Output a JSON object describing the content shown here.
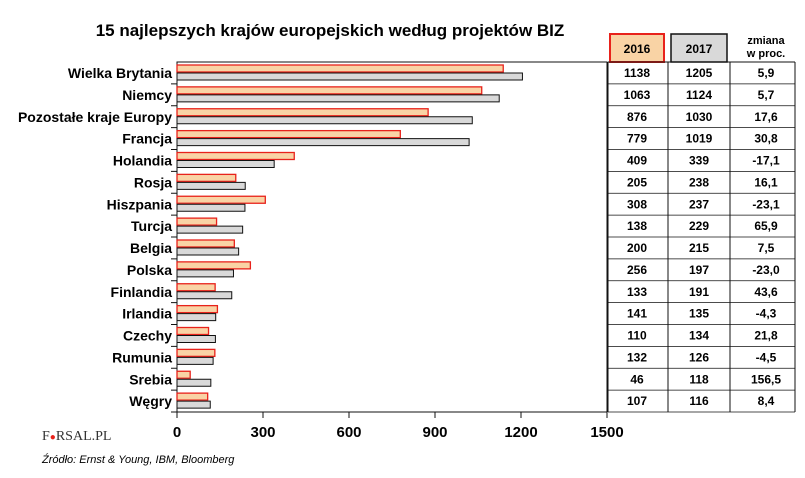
{
  "chart_data": {
    "type": "bar",
    "orientation": "horizontal",
    "title": "15 najlepszych krajów europejskich według projektów BIZ",
    "categories": [
      "Wielka Brytania",
      "Niemcy",
      "Pozostałe kraje Europy",
      "Francja",
      "Holandia",
      "Rosja",
      "Hiszpania",
      "Turcja",
      "Belgia",
      "Polska",
      "Finlandia",
      "Irlandia",
      "Czechy",
      "Rumunia",
      "Srebia",
      "Węgry"
    ],
    "series": [
      {
        "name": "2016",
        "values": [
          1138,
          1063,
          876,
          779,
          409,
          205,
          308,
          138,
          200,
          256,
          133,
          141,
          110,
          132,
          46,
          107
        ],
        "color": "#f9d3a5",
        "stroke": "#e8221b"
      },
      {
        "name": "2017",
        "values": [
          1205,
          1124,
          1030,
          1019,
          339,
          238,
          237,
          229,
          215,
          197,
          191,
          135,
          134,
          126,
          118,
          116
        ],
        "color": "#d9d9d9",
        "stroke": "#111111"
      }
    ],
    "change_header": "zmiana w proc.",
    "change_header_lines": [
      "zmiana",
      "w proc."
    ],
    "change": [
      "5,9",
      "5,7",
      "17,6",
      "30,8",
      "-17,1",
      "16,1",
      "-23,1",
      "65,9",
      "7,5",
      "-23,0",
      "43,6",
      "-4,3",
      "21,8",
      "-4,5",
      "156,5",
      "8,4"
    ],
    "xlim": [
      0,
      1500
    ],
    "xticks": [
      0,
      300,
      600,
      900,
      1200,
      1500
    ],
    "xlabel": "",
    "ylabel": "",
    "grid": false,
    "legend": "table-header"
  },
  "logo": {
    "text_before": "F",
    "glyph": "●",
    "text_after": "RSAL.PL"
  },
  "source": "Źródło: Ernst & Young, IBM, Bloomberg",
  "colors": {
    "accent": "#e8221b",
    "bar2016": "#f9d3a5",
    "bar2017": "#d9d9d9",
    "outline": "#111111"
  }
}
